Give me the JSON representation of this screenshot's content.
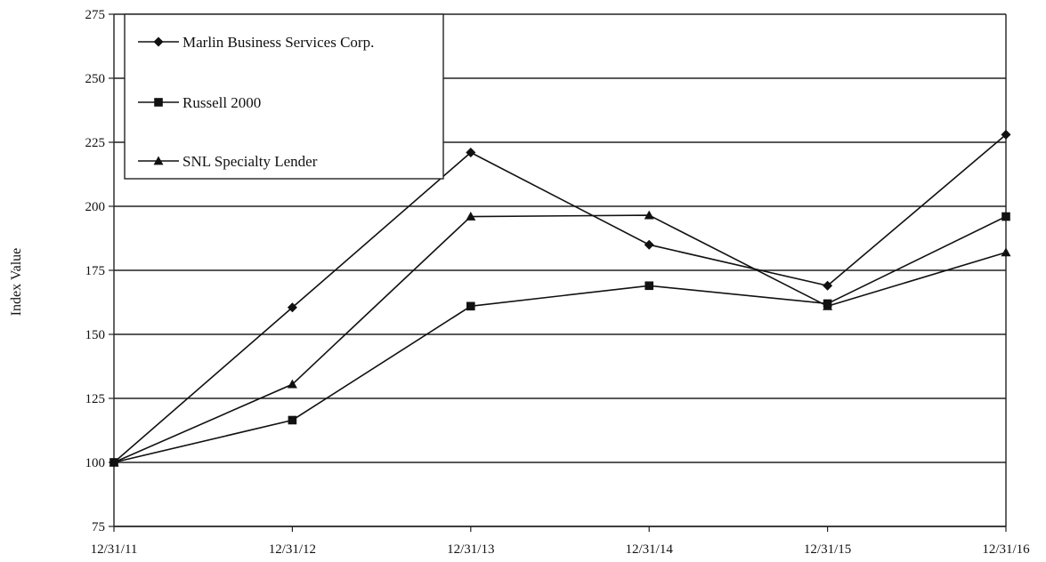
{
  "chart_data": {
    "type": "line",
    "title": "",
    "xlabel": "",
    "ylabel": "Index Value",
    "categories": [
      "12/31/11",
      "12/31/12",
      "12/31/13",
      "12/31/14",
      "12/31/15",
      "12/31/16"
    ],
    "yticks": [
      75,
      100,
      125,
      150,
      175,
      200,
      225,
      250,
      275
    ],
    "ylim": [
      75,
      275
    ],
    "grid": true,
    "legend_position": "top-left",
    "series": [
      {
        "name": "Marlin Business Services Corp.",
        "marker": "diamond",
        "color": "#111111",
        "values": [
          100,
          160.5,
          221,
          185,
          169,
          228
        ]
      },
      {
        "name": "Russell 2000",
        "marker": "square",
        "color": "#111111",
        "values": [
          100,
          116.5,
          161,
          169,
          162,
          196
        ]
      },
      {
        "name": "SNL Specialty Lender",
        "marker": "triangle",
        "color": "#111111",
        "values": [
          100,
          130.5,
          196,
          196.5,
          161,
          182
        ]
      }
    ]
  }
}
